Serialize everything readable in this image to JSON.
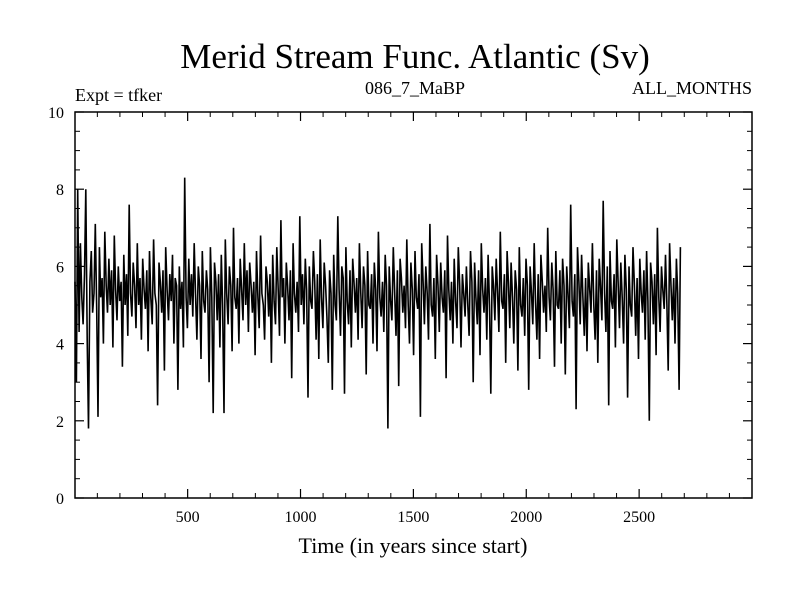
{
  "chart_data": {
    "type": "line",
    "title": "Merid Stream Func. Atlantic (Sv)",
    "subtitle_left": "Expt = tfker",
    "subtitle_center": "086_7_MaBP",
    "subtitle_right": "ALL_MONTHS",
    "xlabel": "Time (in years since start)",
    "ylabel": "",
    "xlim": [
      1,
      3000
    ],
    "ylim": [
      0,
      10
    ],
    "x_ticks": [
      {
        "value": 500,
        "label": "500"
      },
      {
        "value": 1000,
        "label": "1000"
      },
      {
        "value": 1500,
        "label": "1500"
      },
      {
        "value": 2000,
        "label": "2000"
      },
      {
        "value": 2500,
        "label": "2500"
      }
    ],
    "y_ticks": [
      {
        "value": 0,
        "label": "0"
      },
      {
        "value": 2,
        "label": "2"
      },
      {
        "value": 4,
        "label": "4"
      },
      {
        "value": 6,
        "label": "6"
      },
      {
        "value": 8,
        "label": "8"
      },
      {
        "value": 10,
        "label": "10"
      }
    ],
    "grid": false,
    "series": [
      {
        "color": "#000000",
        "x_start": 1,
        "x_step": 6,
        "values": [
          5.6,
          3.0,
          8.0,
          4.3,
          6.6,
          5.2,
          4.5,
          5.8,
          8.0,
          4.1,
          1.8,
          5.6,
          6.4,
          4.8,
          5.3,
          7.1,
          4.9,
          2.1,
          6.5,
          5.2,
          5.7,
          4.0,
          6.9,
          5.5,
          4.8,
          6.2,
          5.0,
          5.9,
          3.9,
          6.8,
          5.4,
          4.6,
          6.0,
          5.1,
          5.6,
          3.4,
          6.3,
          5.0,
          5.8,
          4.2,
          7.6,
          5.3,
          4.7,
          6.1,
          5.5,
          4.4,
          6.6,
          5.0,
          5.7,
          4.1,
          6.2,
          5.4,
          4.9,
          5.9,
          3.8,
          6.4,
          5.2,
          4.5,
          6.7,
          5.3,
          5.0,
          2.4,
          6.1,
          5.6,
          4.8,
          5.9,
          3.3,
          6.5,
          5.4,
          4.6,
          5.8,
          5.1,
          6.3,
          4.0,
          5.7,
          5.5,
          2.8,
          6.0,
          4.9,
          5.6,
          3.9,
          8.3,
          5.2,
          4.4,
          6.2,
          5.0,
          5.8,
          4.7,
          6.6,
          5.3,
          4.1,
          6.0,
          5.5,
          3.6,
          6.4,
          5.1,
          4.8,
          5.9,
          5.4,
          3.0,
          6.5,
          5.2,
          2.2,
          6.1,
          5.6,
          4.6,
          5.8,
          3.9,
          6.3,
          5.0,
          2.2,
          6.7,
          5.3,
          4.5,
          6.0,
          5.5,
          3.8,
          7.0,
          5.2,
          4.9,
          5.7,
          4.0,
          6.2,
          5.4,
          4.6,
          6.6,
          5.0,
          5.9,
          4.3,
          6.1,
          5.5,
          4.8,
          5.6,
          3.7,
          6.4,
          5.2,
          4.4,
          6.8,
          5.3,
          5.0,
          4.1,
          6.0,
          5.6,
          4.7,
          5.8,
          3.5,
          6.3,
          5.1,
          4.5,
          6.5,
          5.4,
          4.2,
          7.2,
          5.2,
          5.7,
          4.0,
          6.1,
          5.5,
          4.6,
          5.9,
          3.1,
          6.6,
          5.3,
          4.8,
          5.6,
          4.3,
          7.3,
          5.0,
          5.8,
          4.5,
          6.2,
          5.4,
          2.6,
          6.0,
          5.1,
          4.9,
          6.4,
          5.6,
          4.1,
          5.8,
          3.6,
          6.7,
          5.2,
          4.4,
          6.1,
          5.5,
          4.7,
          3.5,
          5.9,
          5.3,
          2.8,
          6.3,
          5.0,
          4.6,
          7.3,
          5.4,
          4.2,
          6.0,
          5.7,
          2.7,
          6.5,
          5.1,
          4.5,
          5.9,
          3.9,
          6.2,
          5.6,
          4.8,
          5.7,
          4.1,
          6.6,
          5.3,
          4.4,
          6.0,
          5.5,
          3.2,
          6.4,
          5.0,
          4.9,
          5.8,
          4.0,
          6.1,
          5.4,
          3.8,
          6.9,
          5.2,
          4.7,
          5.6,
          4.3,
          6.3,
          5.5,
          1.8,
          6.0,
          5.1,
          4.6,
          6.5,
          5.3,
          4.2,
          5.9,
          2.9,
          6.2,
          5.7,
          4.8,
          5.5,
          4.4,
          6.7,
          5.0,
          4.0,
          6.1,
          5.4,
          3.7,
          6.4,
          5.2,
          4.9,
          5.8,
          2.1,
          6.6,
          5.6,
          4.5,
          6.0,
          5.3,
          4.1,
          7.1,
          5.0,
          4.7,
          5.7,
          3.6,
          6.3,
          5.5,
          4.3,
          6.1,
          5.2,
          4.8,
          5.9,
          3.1,
          6.8,
          5.4,
          4.6,
          5.6,
          4.0,
          6.2,
          5.1,
          4.4,
          6.5,
          5.5,
          3.9,
          5.8,
          5.3,
          4.7,
          6.0,
          5.0,
          4.2,
          6.4,
          5.6,
          3.0,
          6.1,
          5.2,
          4.5,
          5.9,
          3.7,
          6.6,
          5.4,
          4.8,
          5.7,
          4.1,
          6.3,
          5.0,
          2.7,
          6.0,
          5.5,
          4.6,
          6.2,
          5.3,
          4.3,
          6.9,
          5.1,
          4.9,
          5.8,
          3.5,
          6.4,
          5.6,
          4.4,
          6.1,
          5.2,
          4.0,
          5.9,
          5.4,
          3.3,
          6.5,
          5.0,
          4.7,
          5.7,
          4.2,
          6.2,
          5.5,
          2.8,
          6.0,
          5.3,
          4.5,
          6.6,
          5.1,
          4.1,
          5.8,
          3.6,
          6.3,
          5.6,
          4.8,
          5.5,
          4.3,
          7.0,
          5.2,
          4.6,
          6.1,
          5.4,
          3.4,
          6.4,
          5.0,
          4.9,
          5.9,
          4.0,
          6.2,
          5.5,
          3.2,
          6.0,
          5.3,
          4.4,
          7.6,
          5.1,
          4.7,
          5.8,
          2.3,
          6.5,
          5.6,
          4.5,
          6.3,
          5.2,
          4.2,
          5.7,
          3.8,
          6.1,
          5.4,
          4.8,
          6.6,
          5.0,
          4.1,
          5.9,
          3.5,
          6.2,
          5.5,
          4.6,
          7.7,
          5.3,
          4.3,
          6.0,
          2.4,
          6.4,
          5.1,
          4.9,
          5.8,
          3.9,
          6.7,
          5.6,
          4.4,
          6.1,
          5.2,
          4.0,
          6.3,
          5.4,
          2.6,
          6.0,
          5.0,
          4.7,
          6.5,
          5.5,
          4.2,
          5.7,
          3.6,
          6.2,
          5.3,
          4.8,
          5.9,
          4.1,
          6.4,
          5.1,
          2.0,
          6.1,
          5.6,
          4.5,
          5.8,
          3.7,
          7.0,
          5.2,
          4.3,
          6.0,
          5.4,
          4.9,
          6.3,
          5.0,
          3.3,
          6.6,
          5.5,
          4.6,
          5.7,
          4.0,
          6.2,
          5.3,
          2.8,
          6.5
        ]
      }
    ]
  }
}
